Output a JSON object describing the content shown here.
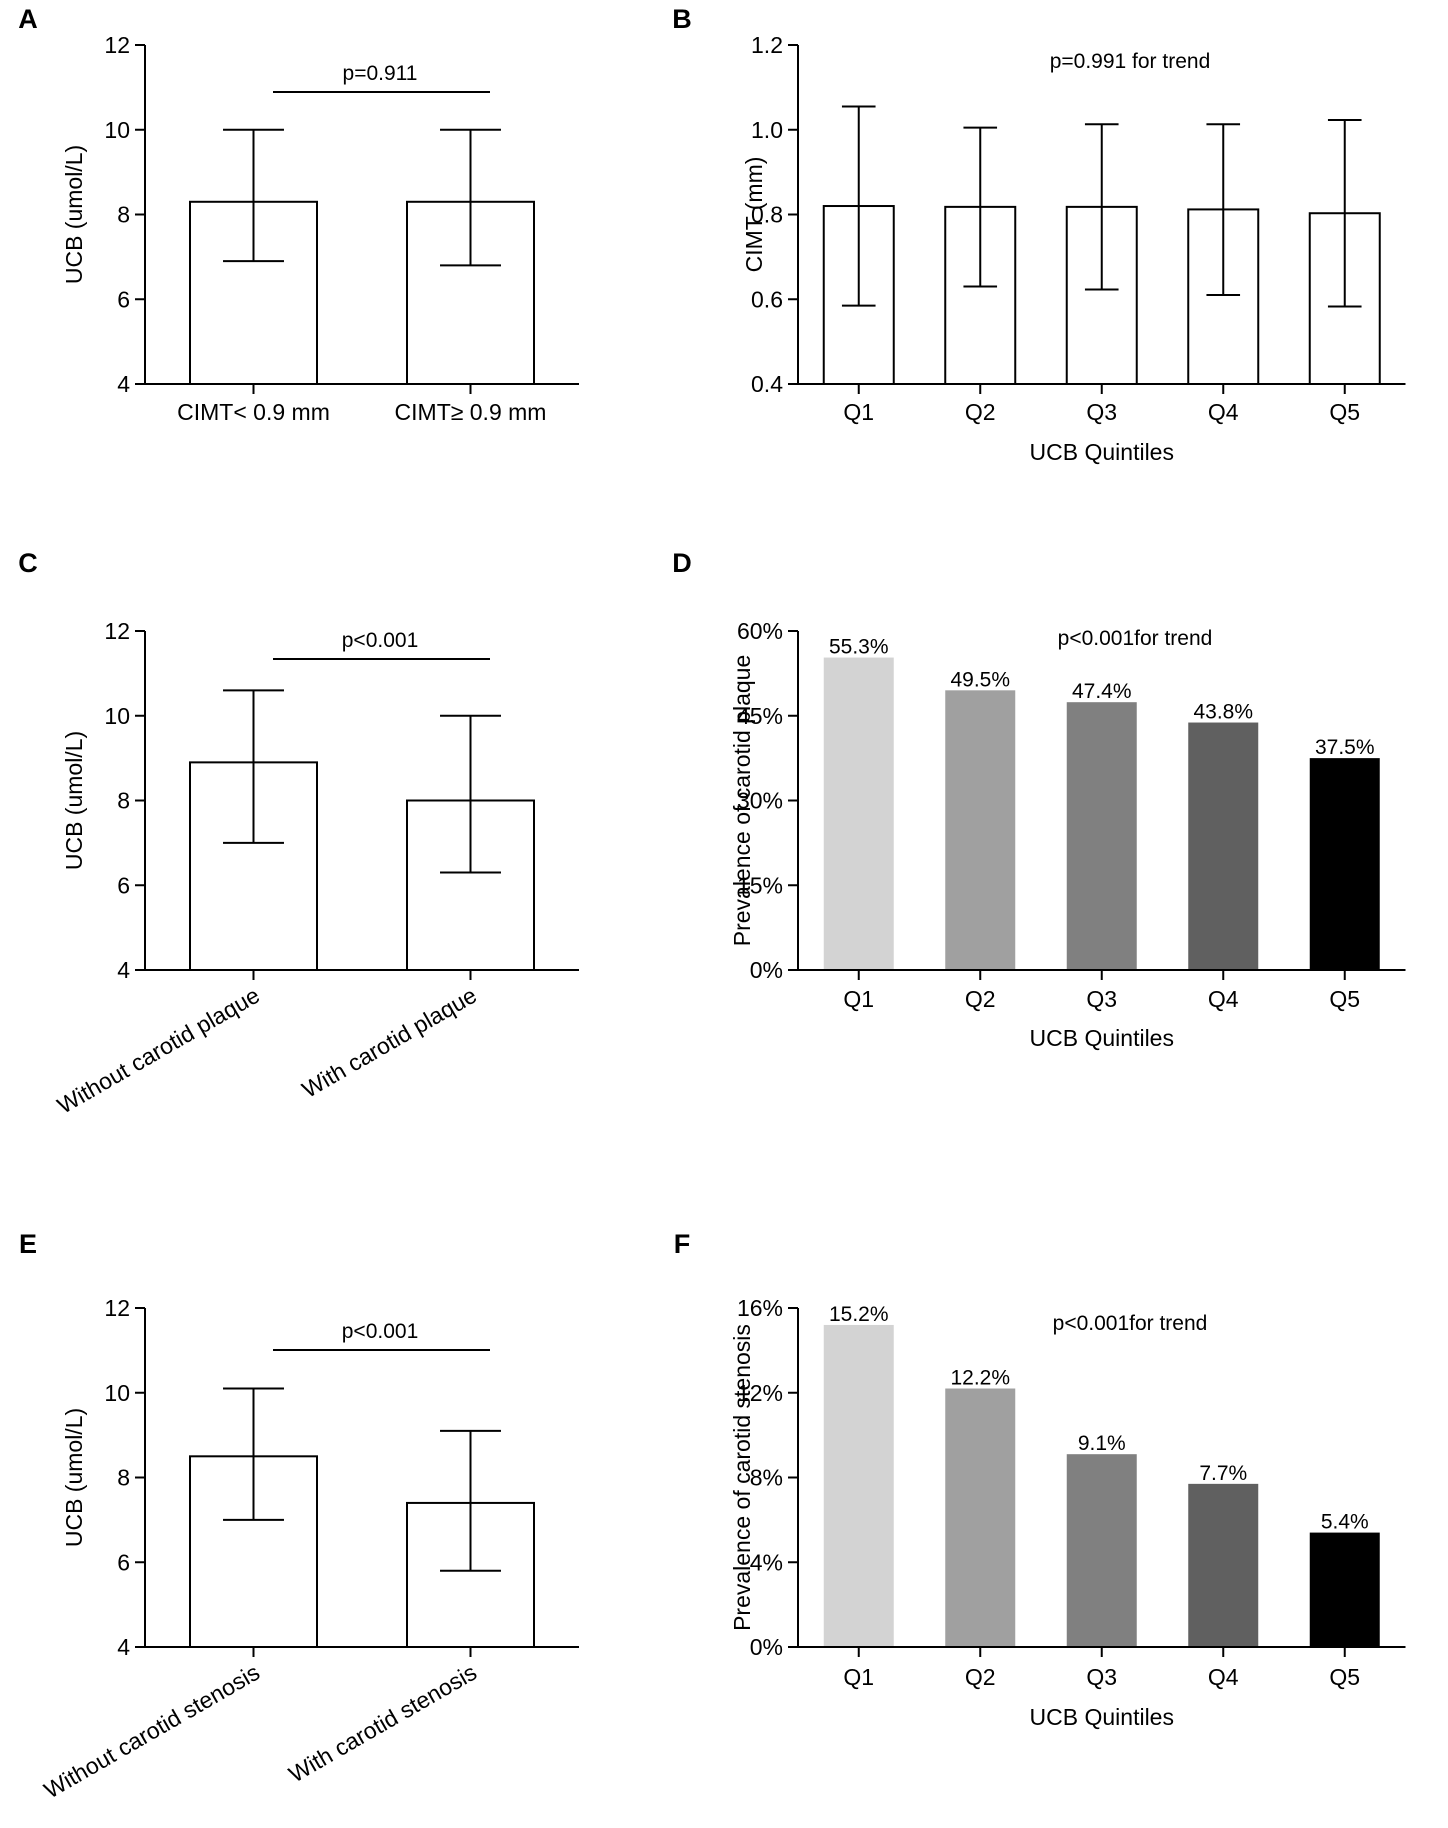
{
  "chart_data": [
    {
      "panel": "A",
      "type": "bar",
      "categories": [
        "CIMT< 0.9 mm",
        "CIMT≥ 0.9 mm"
      ],
      "values": [
        8.3,
        8.3
      ],
      "error_low": [
        6.9,
        6.8
      ],
      "error_high": [
        10.0,
        10.0
      ],
      "ylabel": "UCB (umol/L)",
      "xlabel": "",
      "ylim": [
        4,
        12
      ],
      "yticks": [
        4,
        6,
        8,
        10,
        12
      ],
      "y_tick_labels": [
        "4",
        "6",
        "8",
        "10",
        "12"
      ],
      "annotation": "p=0.911",
      "comparison_bracket": true,
      "bar_fills": [
        "#ffffff",
        "#ffffff"
      ],
      "bar_value_labels": [],
      "rotated_labels": false
    },
    {
      "panel": "B",
      "type": "bar",
      "categories": [
        "Q1",
        "Q2",
        "Q3",
        "Q4",
        "Q5"
      ],
      "values": [
        0.82,
        0.818,
        0.818,
        0.812,
        0.803
      ],
      "error_low": [
        0.585,
        0.63,
        0.623,
        0.61,
        0.583
      ],
      "error_high": [
        1.055,
        1.005,
        1.013,
        1.013,
        1.023
      ],
      "ylabel": "CIMT (mm)",
      "xlabel": "UCB Quintiles",
      "ylim": [
        0.4,
        1.2
      ],
      "yticks": [
        0.4,
        0.6,
        0.8,
        1.0,
        1.2
      ],
      "y_tick_labels": [
        "0.4",
        "0.6",
        "0.8",
        "1.0",
        "1.2"
      ],
      "annotation": "p=0.991 for trend",
      "comparison_bracket": false,
      "bar_fills": [
        "#ffffff",
        "#ffffff",
        "#ffffff",
        "#ffffff",
        "#ffffff"
      ],
      "bar_value_labels": [],
      "rotated_labels": false
    },
    {
      "panel": "C",
      "type": "bar",
      "categories": [
        "Without carotid plaque",
        "With carotid plaque"
      ],
      "values": [
        8.9,
        8.0
      ],
      "error_low": [
        7.0,
        6.3
      ],
      "error_high": [
        10.6,
        10.0
      ],
      "ylabel": "UCB (umol/L)",
      "xlabel": "",
      "ylim": [
        4,
        12
      ],
      "yticks": [
        4,
        6,
        8,
        10,
        12
      ],
      "y_tick_labels": [
        "4",
        "6",
        "8",
        "10",
        "12"
      ],
      "annotation": "p<0.001",
      "comparison_bracket": true,
      "bar_fills": [
        "#ffffff",
        "#ffffff"
      ],
      "bar_value_labels": [],
      "rotated_labels": true
    },
    {
      "panel": "D",
      "type": "bar",
      "categories": [
        "Q1",
        "Q2",
        "Q3",
        "Q4",
        "Q5"
      ],
      "values": [
        55.3,
        49.5,
        47.4,
        43.8,
        37.5
      ],
      "error_low": [],
      "error_high": [],
      "ylabel": "Prevalence of carotid plaque",
      "xlabel": "UCB Quintiles",
      "ylim": [
        0,
        60
      ],
      "yticks": [
        0,
        15,
        30,
        45,
        60
      ],
      "y_tick_labels": [
        "0%",
        "15%",
        "30%",
        "45%",
        "60%"
      ],
      "annotation": "p<0.001for trend",
      "comparison_bracket": false,
      "bar_fills": [
        "#d3d3d3",
        "#a0a0a0",
        "#808080",
        "#606060",
        "#000000"
      ],
      "bar_value_labels": [
        "55.3%",
        "49.5%",
        "47.4%",
        "43.8%",
        "37.5%"
      ],
      "rotated_labels": false
    },
    {
      "panel": "E",
      "type": "bar",
      "categories": [
        "Without carotid stenosis",
        "With carotid stenosis"
      ],
      "values": [
        8.5,
        7.4
      ],
      "error_low": [
        7.0,
        5.8
      ],
      "error_high": [
        10.1,
        9.1
      ],
      "ylabel": "UCB (umol/L)",
      "xlabel": "",
      "ylim": [
        4,
        12
      ],
      "yticks": [
        4,
        6,
        8,
        10,
        12
      ],
      "y_tick_labels": [
        "4",
        "6",
        "8",
        "10",
        "12"
      ],
      "annotation": "p<0.001",
      "comparison_bracket": true,
      "bar_fills": [
        "#ffffff",
        "#ffffff"
      ],
      "bar_value_labels": [],
      "rotated_labels": true
    },
    {
      "panel": "F",
      "type": "bar",
      "categories": [
        "Q1",
        "Q2",
        "Q3",
        "Q4",
        "Q5"
      ],
      "values": [
        15.2,
        12.2,
        9.1,
        7.7,
        5.4
      ],
      "error_low": [],
      "error_high": [],
      "ylabel": "Prevalence of carotid stenosis",
      "xlabel": "UCB Quintiles",
      "ylim": [
        0,
        16
      ],
      "yticks": [
        0,
        4,
        8,
        12,
        16
      ],
      "y_tick_labels": [
        "0%",
        "4%",
        "8%",
        "12%",
        "16%"
      ],
      "annotation": "p<0.001for trend",
      "comparison_bracket": false,
      "bar_fills": [
        "#d3d3d3",
        "#a0a0a0",
        "#808080",
        "#606060",
        "#000000"
      ],
      "bar_value_labels": [
        "15.2%",
        "12.2%",
        "9.1%",
        "7.7%",
        "5.4%"
      ],
      "rotated_labels": false
    }
  ]
}
